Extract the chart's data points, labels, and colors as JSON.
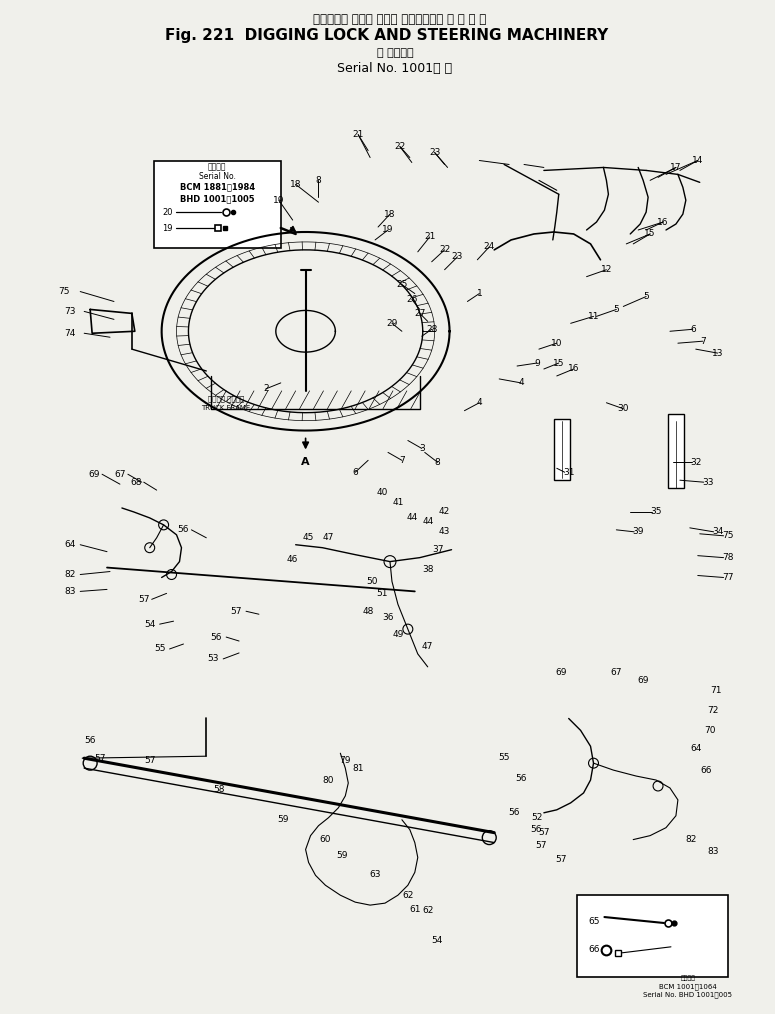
{
  "title_jp": "ディギング ロック およܽ ステアリング マ シ ナ リ",
  "title_en": "Fig. 221  DIGGING LOCK AND STEERING MACHINERY",
  "subtitle_jp": "適用号機",
  "subtitle_serial": "Serial No. 1001～",
  "bg_color": "#f0f0eb",
  "line_color": "#000000",
  "text_color": "#000000",
  "figsize": [
    7.75,
    10.14
  ],
  "dpi": 100
}
